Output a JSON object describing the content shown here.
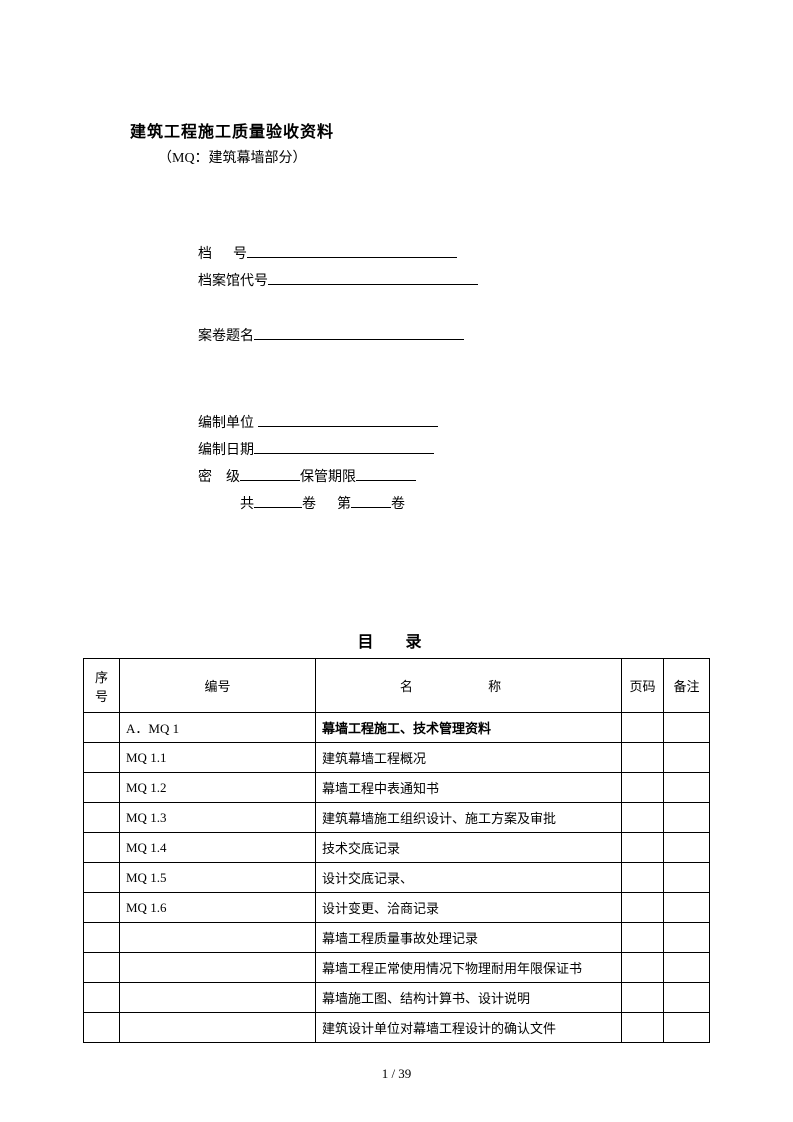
{
  "header": {
    "title": "建筑工程施工质量验收资料",
    "subtitle": "（MQ：建筑幕墙部分）"
  },
  "info": {
    "file_no_label": "档      号",
    "archive_label": "档案馆代号",
    "subject_label": "案卷题名",
    "unit_label": "编制单位",
    "date_label": "编制日期",
    "secret_label": "密    级",
    "retention_label": "保管期限",
    "total_prefix": "共",
    "total_mid": "卷      第",
    "total_suffix": "卷"
  },
  "toc_title": "目  录",
  "toc_headers": {
    "seq": "序号",
    "code": "编号",
    "name": "名    称",
    "page": "页码",
    "note": "备注"
  },
  "toc_rows": [
    {
      "code": "A．MQ  1",
      "name": "幕墙工程施工、技术管理资料",
      "is_section": true
    },
    {
      "code": "MQ  1.1",
      "name": "建筑幕墙工程概况"
    },
    {
      "code": "MQ  1.2",
      "name": "幕墙工程中表通知书"
    },
    {
      "code": "MQ  1.3",
      "name": "建筑幕墙施工组织设计、施工方案及审批"
    },
    {
      "code": "MQ  1.4",
      "name": "技术交底记录"
    },
    {
      "code": "MQ  1.5",
      "name": "设计交底记录、"
    },
    {
      "code": "MQ  1.6",
      "name": "设计变更、洽商记录"
    },
    {
      "code": "",
      "name": "幕墙工程质量事故处理记录"
    },
    {
      "code": "",
      "name": "幕墙工程正常使用情况下物理耐用年限保证书"
    },
    {
      "code": "",
      "name": "幕墙施工图、结构计算书、设计说明"
    },
    {
      "code": "",
      "name": "建筑设计单位对幕墙工程设计的确认文件"
    }
  ],
  "footer": "1 / 39"
}
